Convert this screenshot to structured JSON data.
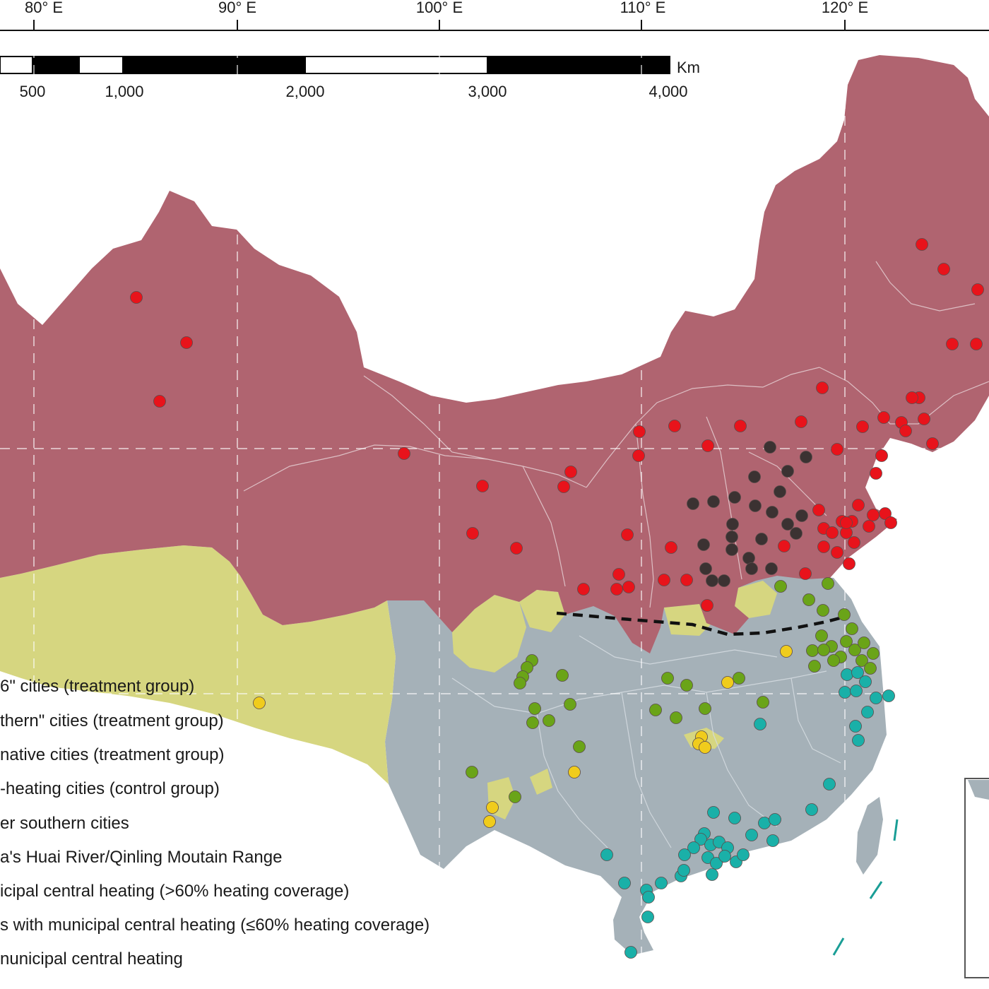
{
  "graticule": {
    "longitude_labels": [
      "80° E",
      "90° E",
      "100° E",
      "110° E",
      "120° E"
    ]
  },
  "scale_bar": {
    "unit": "Km",
    "labels": [
      "500",
      "1,000",
      "2,000",
      "3,000",
      "4,000"
    ]
  },
  "legend": {
    "items": [
      "6\" cities (treatment group)",
      "thern\" cities (treatment group)",
      "native cities (treatment group)",
      "-heating cities (control group)",
      "er southern cities",
      "a's Huai River/Qinling Moutain Range",
      "icipal central heating (>60% heating coverage)",
      "s with municipal central heating (≤60% heating coverage)",
      "nunicipal central heating"
    ]
  },
  "colors": {
    "north_region": "#b06470",
    "south_partial_region": "#d6d680",
    "south_no_heating_region": "#a5b1b8",
    "red_city": "#e8131b",
    "dark_city": "#3b3232",
    "green_city": "#6aa418",
    "teal_city": "#1ab0a8",
    "yellow_city": "#f0cc1c",
    "huai_line": "#111111"
  }
}
